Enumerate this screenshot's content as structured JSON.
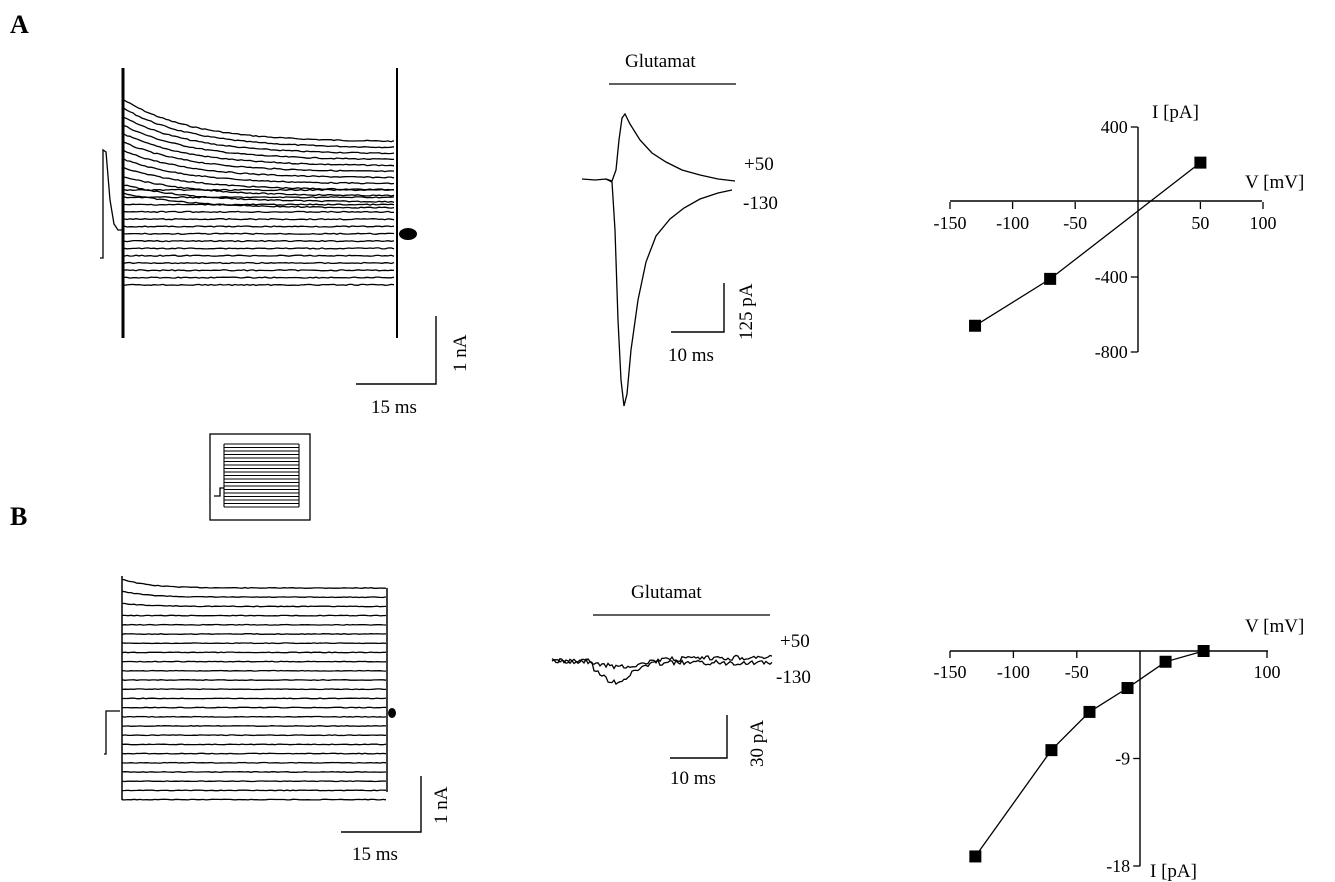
{
  "panels": {
    "A": {
      "label": "A",
      "scale1": {
        "time": "15 ms",
        "amp": "1 nA"
      },
      "glutamate": {
        "label": "Glutamat",
        "trace_labels": [
          "+50",
          "-130"
        ],
        "scale": {
          "time": "10 ms",
          "amp": "125 pA"
        }
      }
    },
    "B": {
      "label": "B",
      "scale1": {
        "time": "15 ms",
        "amp": "1 nA"
      },
      "glutamate": {
        "label": "Glutamat",
        "trace_labels": [
          "+50",
          "-130"
        ],
        "scale": {
          "time": "10 ms",
          "amp": "30 pA"
        }
      }
    }
  },
  "chart_data": [
    {
      "panel": "A",
      "type": "line",
      "xlabel": "V [mV]",
      "ylabel": "I [pA]",
      "xlim": [
        -150,
        100
      ],
      "ylim": [
        -800,
        400
      ],
      "xticks": [
        "-150",
        "-100",
        "-50",
        "50",
        "100"
      ],
      "yticks": [
        "400",
        "-400",
        "-800"
      ],
      "x": [
        -130,
        -70,
        50
      ],
      "y": [
        -660,
        -410,
        210
      ]
    },
    {
      "panel": "B",
      "type": "line",
      "xlabel": "V [mV]",
      "ylabel": "I [pA]",
      "xlim": [
        -150,
        100
      ],
      "ylim": [
        -18,
        0
      ],
      "xticks": [
        "-150",
        "-100",
        "-50",
        "100"
      ],
      "yticks": [
        "-9",
        "-18"
      ],
      "x": [
        -130,
        -70,
        -40,
        -10,
        20,
        50
      ],
      "y": [
        -17.2,
        -8.3,
        -5.1,
        -3.1,
        -0.9,
        0
      ]
    }
  ]
}
